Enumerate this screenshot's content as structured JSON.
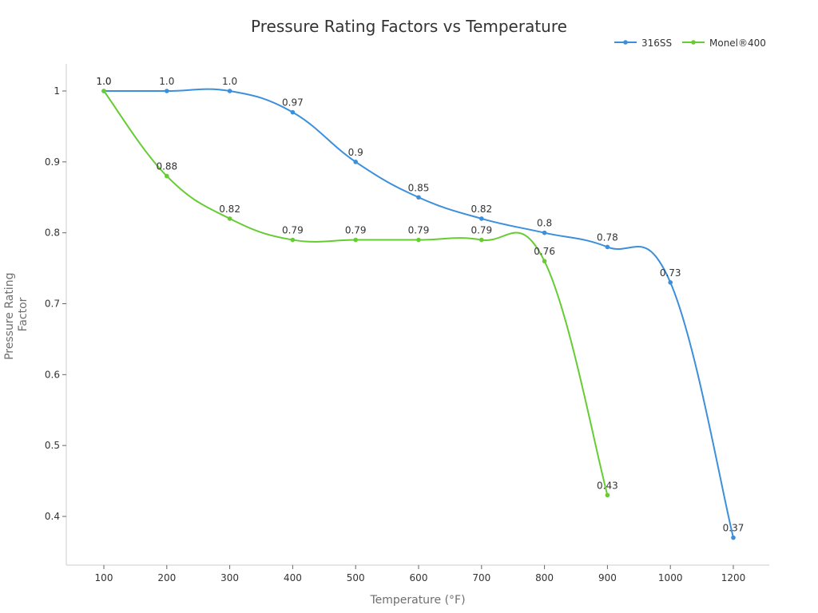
{
  "chart_data": {
    "type": "line",
    "title": "Pressure Rating Factors vs Temperature",
    "xlabel": "Temperature (°F)",
    "ylabel": "Pressure Rating Factor",
    "ylabel_lines": [
      "Pressure Rating",
      "Factor"
    ],
    "categories": [
      "100",
      "200",
      "300",
      "400",
      "500",
      "600",
      "700",
      "800",
      "900",
      "1000",
      "1200"
    ],
    "ylim": [
      0.33,
      1.04
    ],
    "yticks": [
      0.4,
      0.5,
      0.6,
      0.7,
      0.8,
      0.9,
      1
    ],
    "ytick_labels": [
      "0.4",
      "0.5",
      "0.6",
      "0.7",
      "0.8",
      "0.9",
      "1"
    ],
    "grid": false,
    "legend_position": "top-right",
    "smooth": true,
    "series": [
      {
        "name": "316SS",
        "color": "#3b8fdb",
        "values": [
          1.0,
          1.0,
          1.0,
          0.97,
          0.9,
          0.85,
          0.82,
          0.8,
          0.78,
          0.73,
          0.37
        ],
        "labels": [
          "1.0",
          "1.0",
          "1.0",
          "0.97",
          "0.9",
          "0.85",
          "0.82",
          "0.8",
          "0.78",
          "0.73",
          "0.37"
        ]
      },
      {
        "name": "Monel®400",
        "color": "#66cc33",
        "values": [
          1.0,
          0.88,
          0.82,
          0.79,
          0.79,
          0.79,
          0.79,
          0.76,
          0.43,
          null,
          null
        ],
        "labels": [
          "1.0",
          "0.88",
          "0.82",
          "0.79",
          "0.79",
          "0.79",
          "0.79",
          "0.76",
          "0.43",
          null,
          null
        ]
      }
    ]
  }
}
